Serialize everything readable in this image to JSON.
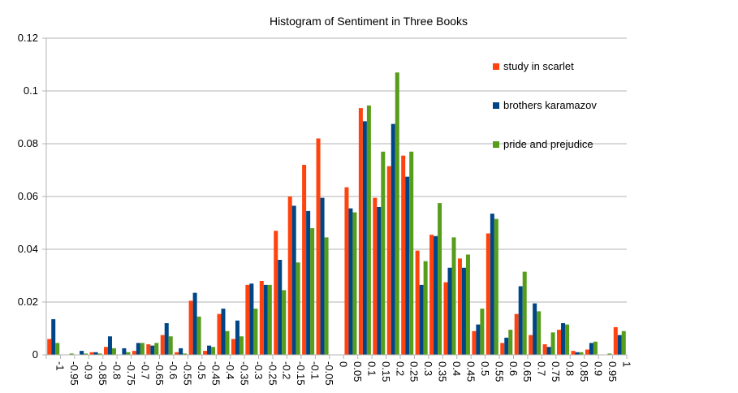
{
  "chart_data": {
    "type": "bar",
    "title": "Histogram of Sentiment in Three Books",
    "xlabel": "",
    "ylabel": "",
    "ylim": [
      0,
      0.12
    ],
    "yticks": [
      "0",
      "0.02",
      "0.04",
      "0.06",
      "0.08",
      "0.1",
      "0.12"
    ],
    "categories": [
      "-1",
      "-0.95",
      "-0.9",
      "-0.85",
      "-0.8",
      "-0.75",
      "-0.7",
      "-0.65",
      "-0.6",
      "-0.55",
      "-0.5",
      "-0.45",
      "-0.4",
      "-0.35",
      "-0.3",
      "-0.25",
      "-0.2",
      "-0.15",
      "-0.1",
      "-0.05",
      "0",
      "0.05",
      "0.1",
      "0.15",
      "0.2",
      "0.25",
      "0.3",
      "0.35",
      "0.4",
      "0.45",
      "0.5",
      "0.55",
      "0.6",
      "0.65",
      "0.7",
      "0.75",
      "0.8",
      "0.85",
      "0.9",
      "0.95",
      "1"
    ],
    "grid": true,
    "legend_position": "top-right",
    "series": [
      {
        "name": "study in scarlet",
        "color": "#ff420e",
        "values": [
          0.006,
          0.0,
          0.0,
          0.001,
          0.003,
          0.0,
          0.0015,
          0.004,
          0.0075,
          0.001,
          0.0205,
          0.0015,
          0.0155,
          0.006,
          0.0265,
          0.028,
          0.047,
          0.06,
          0.072,
          0.082,
          0.0,
          0.0635,
          0.0935,
          0.0595,
          0.0715,
          0.0755,
          0.0395,
          0.0455,
          0.0275,
          0.0365,
          0.009,
          0.046,
          0.0045,
          0.0155,
          0.0075,
          0.004,
          0.0095,
          0.0015,
          0.002,
          0.0,
          0.0105
        ]
      },
      {
        "name": "brothers karamazov",
        "color": "#004586",
        "values": [
          0.0135,
          0.0,
          0.0015,
          0.001,
          0.007,
          0.0025,
          0.0045,
          0.0035,
          0.012,
          0.0025,
          0.0235,
          0.0035,
          0.0175,
          0.013,
          0.027,
          0.0265,
          0.036,
          0.0565,
          0.0545,
          0.0595,
          0.0,
          0.0555,
          0.0885,
          0.056,
          0.0875,
          0.0675,
          0.0265,
          0.045,
          0.033,
          0.033,
          0.0115,
          0.0535,
          0.0065,
          0.026,
          0.0195,
          0.003,
          0.012,
          0.001,
          0.0045,
          0.0,
          0.0075
        ]
      },
      {
        "name": "pride and prejudice",
        "color": "#579d1c",
        "values": [
          0.0045,
          0.0005,
          0.0005,
          0.0005,
          0.0025,
          0.001,
          0.0045,
          0.0045,
          0.007,
          0.0005,
          0.0145,
          0.003,
          0.009,
          0.007,
          0.0175,
          0.0265,
          0.0245,
          0.035,
          0.048,
          0.0445,
          0.0,
          0.054,
          0.0945,
          0.077,
          0.107,
          0.077,
          0.0355,
          0.0575,
          0.0445,
          0.038,
          0.0175,
          0.0515,
          0.0095,
          0.0315,
          0.0165,
          0.0085,
          0.0115,
          0.001,
          0.005,
          0.0005,
          0.009
        ]
      }
    ]
  }
}
